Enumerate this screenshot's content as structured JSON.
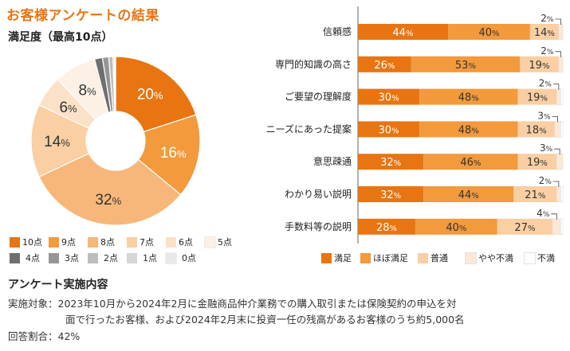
{
  "page_title": "お客様アンケートの結果",
  "colors": {
    "accent": "#e87511",
    "score_palette": [
      "#e87511",
      "#f29a3c",
      "#f7b77a",
      "#f9cfa3",
      "#fbe1c7",
      "#fdf0e4",
      "#6f6f6f",
      "#969696",
      "#bdbdbd",
      "#d6d6d6",
      "#e8e8e8"
    ],
    "bar_palette": [
      "#e87511",
      "#f29a3c",
      "#f9cfa3",
      "#fde8d6",
      "#ffffff"
    ]
  },
  "chart_data": [
    {
      "type": "pie",
      "title": "満足度（最高10点）",
      "categories": [
        "10点",
        "9点",
        "8点",
        "7点",
        "6点",
        "5点",
        "4点",
        "3点",
        "2点",
        "1点",
        "0点"
      ],
      "values": [
        20,
        16,
        32,
        14,
        6,
        8,
        1.5,
        1.2,
        0.8,
        0.3,
        0.2
      ],
      "value_labels": [
        "20%",
        "16%",
        "32%",
        "14%",
        "6%",
        "8%",
        "",
        "",
        "",
        "",
        ""
      ],
      "legend": "bottom"
    },
    {
      "type": "bar",
      "orientation": "horizontal",
      "stacked": true,
      "categories": [
        "信頼感",
        "専門的知識の高さ",
        "ご要望の理解度",
        "ニーズにあった提案",
        "意思疎通",
        "わかり易い説明",
        "手数料等の説明"
      ],
      "series": [
        {
          "name": "満足",
          "values": [
            44,
            26,
            30,
            30,
            32,
            32,
            28
          ]
        },
        {
          "name": "ほぼ満足",
          "values": [
            40,
            53,
            48,
            48,
            46,
            44,
            40
          ]
        },
        {
          "name": "普通",
          "values": [
            14,
            19,
            19,
            18,
            19,
            21,
            27
          ]
        },
        {
          "name": "やや不満",
          "values": [
            2,
            2,
            2,
            3,
            3,
            2,
            4
          ]
        },
        {
          "name": "不満",
          "values": [
            0,
            0,
            1,
            1,
            0,
            1,
            1
          ]
        }
      ],
      "value_labels": [
        [
          "44%",
          "40%",
          "14%",
          "2%"
        ],
        [
          "26%",
          "53%",
          "19%",
          "2%"
        ],
        [
          "30%",
          "48%",
          "19%",
          "2%"
        ],
        [
          "30%",
          "48%",
          "18%",
          "3%"
        ],
        [
          "32%",
          "46%",
          "19%",
          "3%"
        ],
        [
          "32%",
          "44%",
          "21%",
          "2%"
        ],
        [
          "28%",
          "40%",
          "27%",
          "4%"
        ]
      ],
      "xlim": [
        0,
        100
      ],
      "legend": "bottom"
    }
  ],
  "info": {
    "title": "アンケート実施内容",
    "line1": "実施対象：2023年10月から2024年2月に金融商品仲介業務での購入取引または保険契約の申込を対",
    "line2": "面で行ったお客様、および2024年2月末に投資一任の残高があるお客様のうち約5,000名",
    "line3": "回答割合：42%"
  }
}
